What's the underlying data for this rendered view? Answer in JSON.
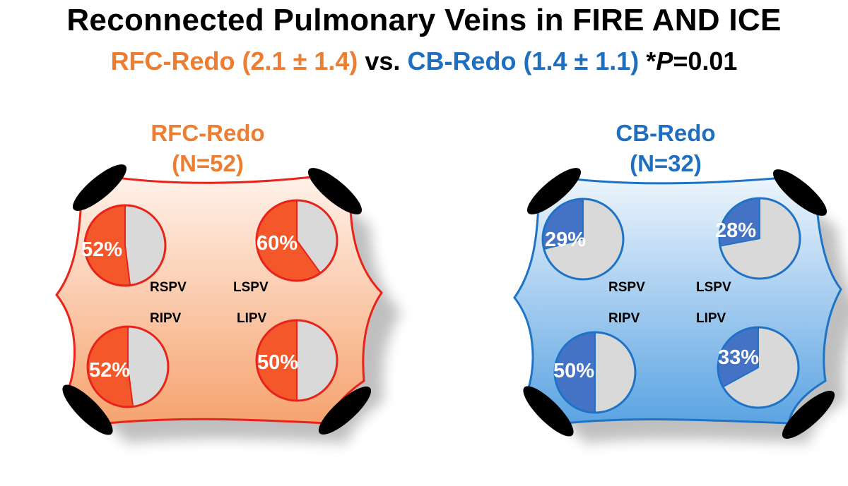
{
  "title": "Reconnected Pulmonary Veins in FIRE AND ICE",
  "subtitle": {
    "rfc": "RFC-Redo (2.1 ± 1.4)",
    "vs": "vs.",
    "cb": "CB-Redo (1.4 ± 1.1)",
    "star": "*",
    "p": "P",
    "pval": "=0.01"
  },
  "colors": {
    "rfc_text": "#ed7d31",
    "rfc_outline": "#e8231a",
    "rfc_slice": "#f4582a",
    "cb_text": "#1f6fc1",
    "cb_outline": "#1e73c6",
    "cb_slice": "#4472c4",
    "remainder": "#d9d9d9",
    "vein_ostium": "#000000"
  },
  "groups": [
    {
      "name": "RFC-Redo",
      "n": "(N=52)",
      "veins": [
        {
          "label": "RSPV",
          "percent": 52,
          "percent_label": "52%"
        },
        {
          "label": "LSPV",
          "percent": 60,
          "percent_label": "60%"
        },
        {
          "label": "RIPV",
          "percent": 52,
          "percent_label": "52%"
        },
        {
          "label": "LIPV",
          "percent": 50,
          "percent_label": "50%"
        }
      ]
    },
    {
      "name": "CB-Redo",
      "n": "(N=32)",
      "veins": [
        {
          "label": "RSPV",
          "percent": 29,
          "percent_label": "29%"
        },
        {
          "label": "LSPV",
          "percent": 28,
          "percent_label": "28%"
        },
        {
          "label": "RIPV",
          "percent": 50,
          "percent_label": "50%"
        },
        {
          "label": "LIPV",
          "percent": 33,
          "percent_label": "33%"
        }
      ]
    }
  ]
}
